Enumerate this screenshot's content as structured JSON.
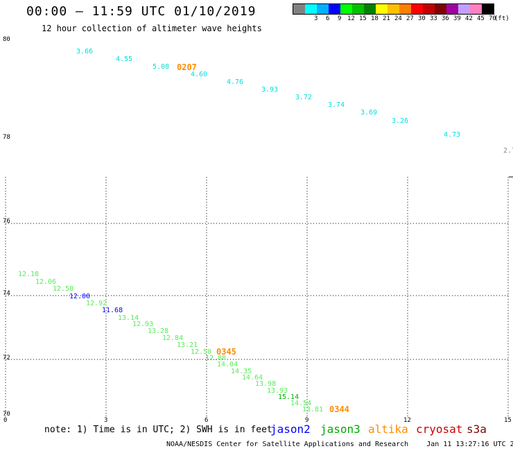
{
  "header": {
    "title": "00:00 – 11:59 UTC 01/10/2019",
    "subtitle": "12 hour collection of altimeter wave heights"
  },
  "legend": {
    "unit": "(ft)",
    "items": [
      {
        "color": "#808080",
        "label": ""
      },
      {
        "color": "#00ffff",
        "label": "3"
      },
      {
        "color": "#00b0ff",
        "label": "6"
      },
      {
        "color": "#0000ff",
        "label": "9"
      },
      {
        "color": "#00ff00",
        "label": "12"
      },
      {
        "color": "#00c000",
        "label": "15"
      },
      {
        "color": "#008000",
        "label": "18"
      },
      {
        "color": "#ffff00",
        "label": "21"
      },
      {
        "color": "#ffc000",
        "label": "24"
      },
      {
        "color": "#ff8000",
        "label": "27"
      },
      {
        "color": "#ff0000",
        "label": "30"
      },
      {
        "color": "#c00000",
        "label": "33"
      },
      {
        "color": "#800000",
        "label": "36"
      },
      {
        "color": "#a000a0",
        "label": "39"
      },
      {
        "color": "#c0a0ff",
        "label": "42"
      },
      {
        "color": "#ff80c0",
        "label": "45"
      },
      {
        "color": "#000000",
        "label": "70"
      }
    ]
  },
  "axes": {
    "y_ticks": [
      "80",
      "78",
      "76",
      "74",
      "72",
      "70"
    ],
    "x_ticks": [
      "0",
      "3",
      "6",
      "9",
      "12",
      "15"
    ]
  },
  "observations": {
    "jason3_track": [
      "12.18",
      "12.06",
      "12.58",
      "12.00",
      "12.92",
      "11.68",
      "13.14",
      "12.93",
      "13.28",
      "12.84",
      "13.21",
      "12.50",
      "12.88",
      "14.04",
      "14.35",
      "14.64",
      "13.98",
      "13.93",
      "15.14",
      "14.54",
      "13.81"
    ],
    "jason3_colors": [
      "#55ee55",
      "#55ee55",
      "#55ee55",
      "#0000ff",
      "#55ee55",
      "#0000ff",
      "#55ee55",
      "#55ee55",
      "#55ee55",
      "#55ee55",
      "#55ee55",
      "#55ee55",
      "#55ee55",
      "#55ee55",
      "#55ee55",
      "#55ee55",
      "#55ee55",
      "#55ee55",
      "#00aa00",
      "#55ee55",
      "#55ee55"
    ],
    "altika_track": [
      "3.66",
      "4.55",
      "5.08",
      "4.60",
      "4.76",
      "3.93",
      "3.72",
      "3.74",
      "3.69",
      "3.26",
      "4.73",
      "2.7"
    ],
    "altika_colors": [
      "#00dddd",
      "#00dddd",
      "#00dddd",
      "#00dddd",
      "#00dddd",
      "#00dddd",
      "#00dddd",
      "#00dddd",
      "#00dddd",
      "#00dddd",
      "#00dddd",
      "#888888"
    ],
    "time_tags": [
      "0207",
      "0345",
      "0344"
    ],
    "time_tag_color": "#ff8c00"
  },
  "note": "note: 1) Time is in UTC; 2) SWH is in feet",
  "satellites": [
    {
      "name": "jason2",
      "color": "#0000ff"
    },
    {
      "name": "jason3",
      "color": "#00aa00"
    },
    {
      "name": "altika",
      "color": "#ff8c00"
    },
    {
      "name": "cryosat",
      "color": "#cc0000"
    },
    {
      "name": "s3a",
      "color": "#800000"
    }
  ],
  "footer": {
    "agency": "NOAA/NESDIS Center for Satellite Applications and Research",
    "timestamp": "Jan 11 13:27:16 UTC 2019"
  }
}
